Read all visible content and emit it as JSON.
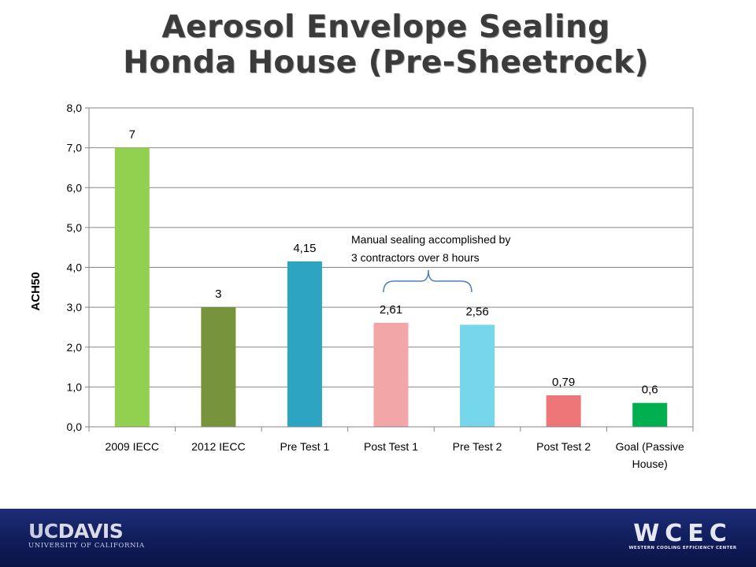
{
  "title_line1": "Aerosol Envelope Sealing",
  "title_line2": "Honda House (Pre-Sheetrock)",
  "annotation": {
    "line1": "Manual sealing accomplished by",
    "line2": "3 contractors over 8 hours"
  },
  "footer": {
    "left_logo": {
      "main_uc": "UC",
      "main_rest": "DAVIS",
      "sub": "UNIVERSITY OF CALIFORNIA"
    },
    "right_logo": {
      "main": "WCEC",
      "sub": "WESTERN COOLING EFFICIENCY CENTER"
    }
  },
  "chart_data": {
    "type": "bar",
    "title": "Aerosol Envelope Sealing Honda House (Pre-Sheetrock)",
    "ylabel": "ACH50",
    "xlabel": "",
    "ylim": [
      0,
      8
    ],
    "ytick_labels": [
      "0,0",
      "1,0",
      "2,0",
      "3,0",
      "4,0",
      "5,0",
      "6,0",
      "7,0",
      "8,0"
    ],
    "grid": true,
    "legend": "none",
    "categories": [
      [
        "2009 IECC"
      ],
      [
        "2012 IECC"
      ],
      [
        "Pre Test 1"
      ],
      [
        "Post Test 1"
      ],
      [
        "Pre Test 2"
      ],
      [
        "Post Test 2"
      ],
      [
        "Goal (Passive",
        "House)"
      ]
    ],
    "values": [
      7,
      3,
      4.15,
      2.61,
      2.56,
      0.79,
      0.6
    ],
    "data_labels": [
      "7",
      "3",
      "4,15",
      "2,61",
      "2,56",
      "0,79",
      "0,6"
    ],
    "colors": [
      "#92d050",
      "#77933c",
      "#2ea4c3",
      "#f2a6a8",
      "#76d6ec",
      "#ee7679",
      "#00b050"
    ],
    "annotation_bracket": [
      "Post Test 1",
      "Pre Test 2"
    ]
  }
}
